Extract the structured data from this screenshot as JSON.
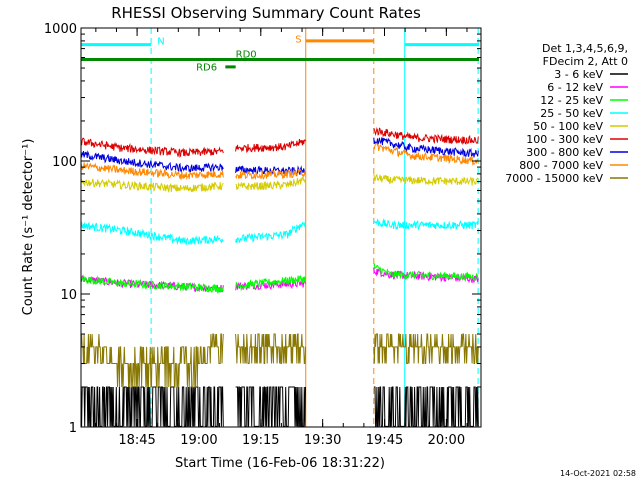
{
  "chart_data": {
    "type": "line",
    "title": "RHESSI Observing Summary Count Rates",
    "xlabel": "Start Time (16-Feb-06 18:31:22)",
    "ylabel": "Count Rate (s⁻¹ detector⁻¹)",
    "yscale": "log",
    "ylim": [
      1,
      1000
    ],
    "xlim_minutes": [
      0,
      97
    ],
    "x_ticks": [
      {
        "label": "18:45",
        "minute": 13.6
      },
      {
        "label": "19:00",
        "minute": 28.6
      },
      {
        "label": "19:15",
        "minute": 43.6
      },
      {
        "label": "19:30",
        "minute": 58.6
      },
      {
        "label": "19:45",
        "minute": 73.6
      },
      {
        "label": "20:00",
        "minute": 88.6
      }
    ],
    "y_ticks": [
      "1",
      "10",
      "100",
      "1000"
    ],
    "legend": {
      "placement": "right",
      "header": [
        "Det 1,3,4,5,6,9,",
        "FDecim 2, Att 0"
      ]
    },
    "series": [
      {
        "name": "3 - 6 keV",
        "color": "#000000"
      },
      {
        "name": "6 - 12 keV",
        "color": "#ff00ff"
      },
      {
        "name": "12 - 25 keV",
        "color": "#00ff00"
      },
      {
        "name": "25 - 50 keV",
        "color": "#00ffff"
      },
      {
        "name": "50 - 100 keV",
        "color": "#d4cc00"
      },
      {
        "name": "100 - 300 keV",
        "color": "#dd0000"
      },
      {
        "name": "300 - 800 keV",
        "color": "#0000dd"
      },
      {
        "name": "800 - 7000 keV",
        "color": "#ff8800"
      },
      {
        "name": "7000 - 15000 keV",
        "color": "#887700"
      }
    ],
    "segments": [
      [
        0,
        34.5
      ],
      [
        37.5,
        54.5
      ],
      [
        71,
        96.5
      ]
    ],
    "series_levels": {
      "3 - 6 keV": [
        [
          0,
          1.6
        ],
        [
          10,
          1.6
        ],
        [
          34,
          1.5
        ],
        [
          38,
          1.6
        ],
        [
          54,
          1.6
        ],
        [
          71,
          1.6
        ],
        [
          96,
          1.6
        ]
      ],
      "6 - 12 keV": [
        [
          0,
          13
        ],
        [
          10,
          12
        ],
        [
          34,
          11
        ],
        [
          38,
          11.5
        ],
        [
          54,
          12
        ],
        [
          71,
          15
        ],
        [
          75,
          14
        ],
        [
          96,
          13
        ]
      ],
      "12 - 25 keV": [
        [
          0,
          13
        ],
        [
          10,
          12
        ],
        [
          34,
          11
        ],
        [
          38,
          11.5
        ],
        [
          54,
          13
        ],
        [
          71,
          16
        ],
        [
          75,
          14
        ],
        [
          96,
          13.5
        ]
      ],
      "25 - 50 keV": [
        [
          0,
          33
        ],
        [
          10,
          30
        ],
        [
          25,
          25
        ],
        [
          34,
          26
        ],
        [
          38,
          26
        ],
        [
          50,
          28
        ],
        [
          54,
          34
        ],
        [
          71,
          35
        ],
        [
          75,
          33
        ],
        [
          96,
          33
        ]
      ],
      "50 - 100 keV": [
        [
          0,
          70
        ],
        [
          10,
          66
        ],
        [
          25,
          62
        ],
        [
          34,
          65
        ],
        [
          38,
          64
        ],
        [
          50,
          66
        ],
        [
          54,
          72
        ],
        [
          71,
          75
        ],
        [
          75,
          72
        ],
        [
          96,
          70
        ]
      ],
      "100 - 300 keV": [
        [
          0,
          140
        ],
        [
          10,
          125
        ],
        [
          25,
          115
        ],
        [
          34,
          118
        ],
        [
          38,
          125
        ],
        [
          50,
          128
        ],
        [
          54,
          140
        ],
        [
          71,
          170
        ],
        [
          80,
          150
        ],
        [
          96,
          143
        ]
      ],
      "300 - 800 keV": [
        [
          0,
          112
        ],
        [
          10,
          100
        ],
        [
          25,
          88
        ],
        [
          34,
          90
        ],
        [
          38,
          86
        ],
        [
          50,
          84
        ],
        [
          54,
          84
        ],
        [
          71,
          145
        ],
        [
          80,
          125
        ],
        [
          96,
          113
        ]
      ],
      "800 - 7000 keV": [
        [
          0,
          92
        ],
        [
          10,
          85
        ],
        [
          25,
          78
        ],
        [
          34,
          80
        ],
        [
          38,
          78
        ],
        [
          50,
          80
        ],
        [
          54,
          82
        ],
        [
          71,
          130
        ],
        [
          80,
          110
        ],
        [
          96,
          100
        ]
      ],
      "7000 - 15000 keV": [
        [
          0,
          4
        ],
        [
          10,
          3.2
        ],
        [
          20,
          2.8
        ],
        [
          30,
          3.4
        ],
        [
          34,
          4
        ],
        [
          38,
          4
        ],
        [
          54,
          4
        ],
        [
          71,
          4
        ],
        [
          96,
          4
        ]
      ]
    },
    "annotations": [
      {
        "text": "N",
        "color": "#00ffff"
      },
      {
        "text": "S",
        "color": "#ff8800"
      },
      {
        "text": "RD0",
        "color": "#008800"
      },
      {
        "text": "RD6",
        "color": "#008800"
      }
    ],
    "flag_bars": [
      {
        "label": "N",
        "color": "#00ffff",
        "level": 750,
        "ranges": [
          [
            0,
            17
          ]
        ],
        "ranges2": [
          [
            78.5,
            96.5
          ]
        ]
      },
      {
        "label": "S",
        "color": "#ff8800",
        "level": 800,
        "ranges": [
          [
            54.5,
            71
          ]
        ]
      },
      {
        "label": "RD0",
        "color": "#008800",
        "level": 580,
        "ranges": [
          [
            0,
            96.5
          ]
        ]
      },
      {
        "label": "RD6",
        "color": "#008800",
        "level": 510,
        "ranges": [
          [
            35,
            37.5
          ]
        ]
      }
    ],
    "vertical_markers": [
      {
        "minute": 0,
        "color": "#00ffff",
        "style": "solid"
      },
      {
        "minute": 17,
        "color": "#00ffff",
        "style": "dashed"
      },
      {
        "minute": 54.5,
        "color": "#ff8800",
        "style": "solid"
      },
      {
        "minute": 71,
        "color": "#ff8800",
        "style": "dashed"
      },
      {
        "minute": 78.5,
        "color": "#00ffff",
        "style": "solid"
      },
      {
        "minute": 96.3,
        "color": "#00ffff",
        "style": "dashed"
      }
    ],
    "footer": "14-Oct-2021 02:58"
  }
}
